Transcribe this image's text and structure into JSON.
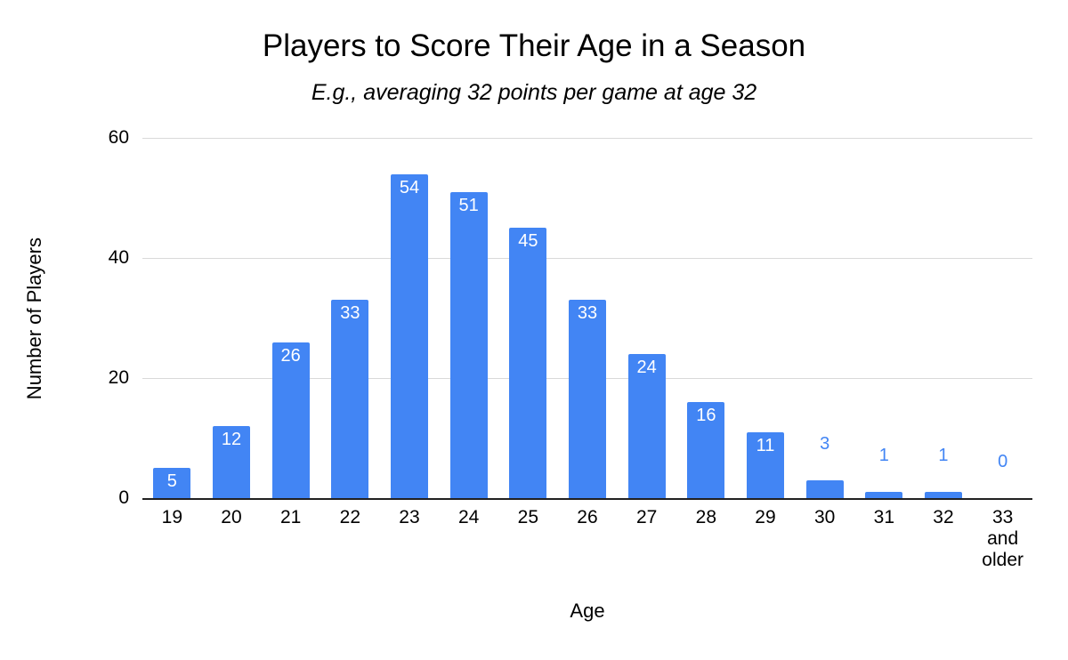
{
  "chart_data": {
    "type": "bar",
    "title": "Players to Score Their Age in a Season",
    "subtitle": "E.g., averaging 32 points per game at age 32",
    "xlabel": "Age",
    "ylabel": "Number of Players",
    "categories": [
      "19",
      "20",
      "21",
      "22",
      "23",
      "24",
      "25",
      "26",
      "27",
      "28",
      "29",
      "30",
      "31",
      "32",
      "33 and older"
    ],
    "values": [
      5,
      12,
      26,
      33,
      54,
      51,
      45,
      33,
      24,
      16,
      11,
      3,
      1,
      1,
      0
    ],
    "ylim": [
      0,
      60
    ],
    "yticks": [
      0,
      20,
      40,
      60
    ],
    "grid": true,
    "legend": "none",
    "bar_color": "#4285f4",
    "inside_label_color": "#ffffff",
    "outside_label_color": "#4285f4",
    "gridline_color": "#d9d9d9",
    "axis_line_color": "#212121"
  }
}
